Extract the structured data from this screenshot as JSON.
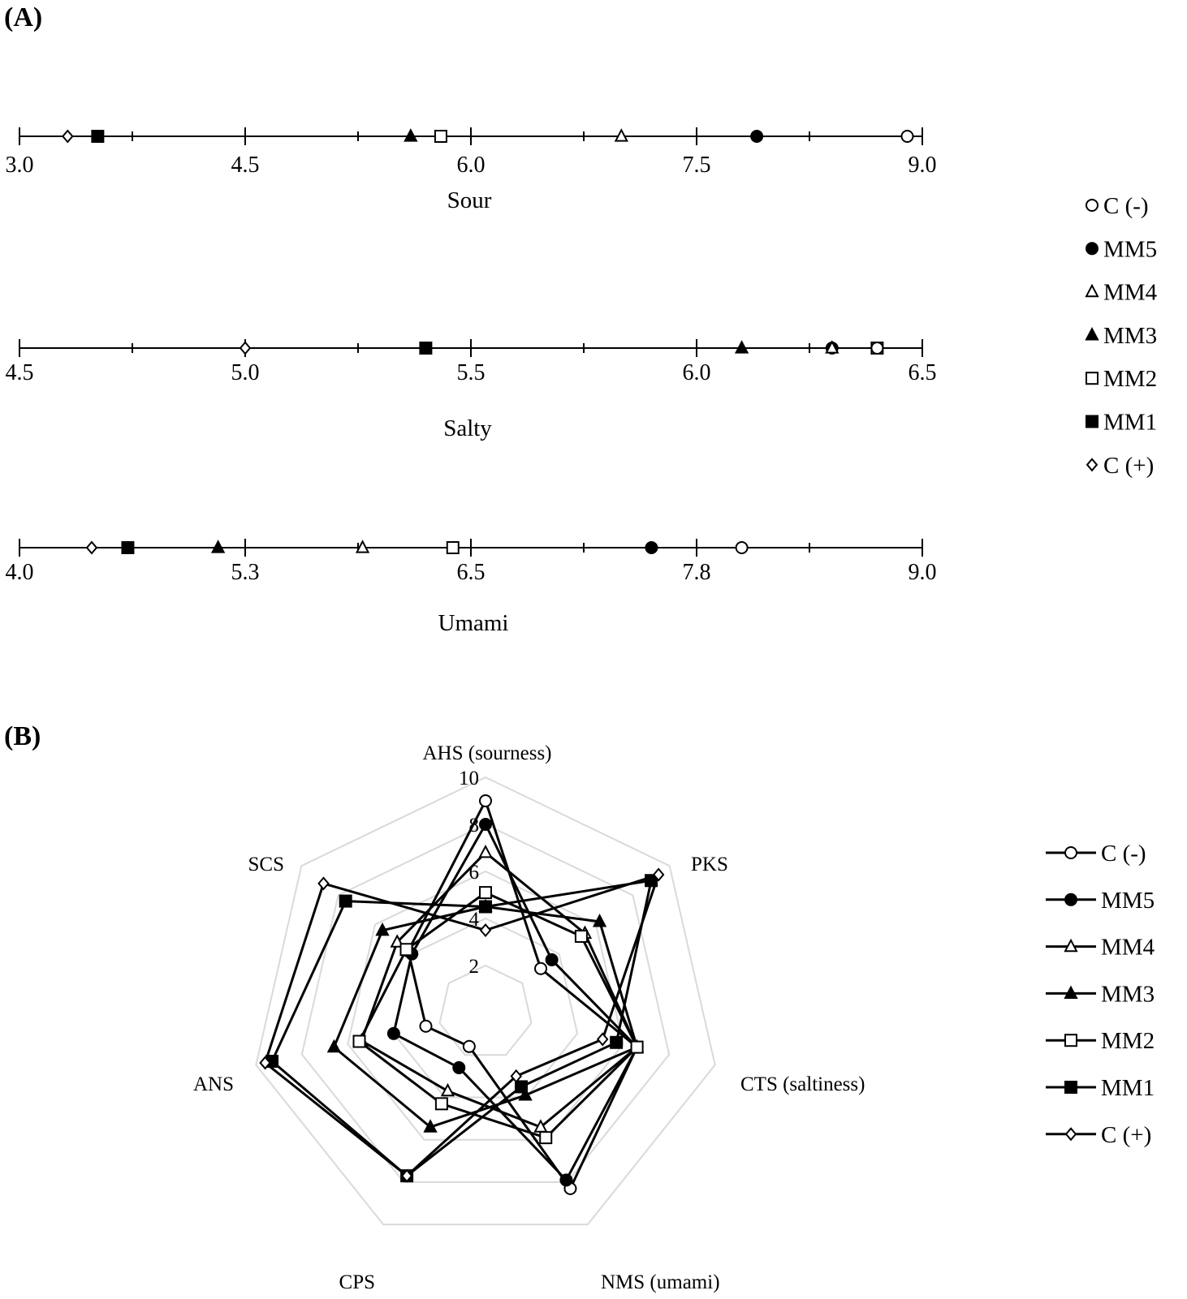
{
  "panels": {
    "a_label": "(A)",
    "b_label": "(B)"
  },
  "legend": {
    "items": [
      {
        "label": "C (-)",
        "marker": "circle-open"
      },
      {
        "label": "MM5",
        "marker": "circle-filled"
      },
      {
        "label": "MM4",
        "marker": "triangle-open"
      },
      {
        "label": "MM3",
        "marker": "triangle-filled"
      },
      {
        "label": "MM2",
        "marker": "square-open"
      },
      {
        "label": "MM1",
        "marker": "square-filled"
      },
      {
        "label": "C (+)",
        "marker": "diamond-open"
      }
    ]
  },
  "colors": {
    "ink": "#000000",
    "grid": "#d9d9d9"
  },
  "chart_data": [
    {
      "type": "scatter",
      "name": "Sour",
      "xlabel": "Sour",
      "xlim": [
        3.0,
        9.0
      ],
      "ticks": [
        "3.0",
        "4.5",
        "6.0",
        "7.5",
        "9.0"
      ],
      "tick_values": [
        3.0,
        4.5,
        6.0,
        7.5,
        9.0
      ],
      "minor_ticks": [
        3.75,
        5.25,
        6.75,
        8.25
      ],
      "points": [
        {
          "series": "C (+)",
          "value": 3.32
        },
        {
          "series": "MM1",
          "value": 3.52
        },
        {
          "series": "MM3",
          "value": 5.6
        },
        {
          "series": "MM2",
          "value": 5.8
        },
        {
          "series": "MM4",
          "value": 7.0
        },
        {
          "series": "MM5",
          "value": 7.9
        },
        {
          "series": "C (-)",
          "value": 8.9
        }
      ]
    },
    {
      "type": "scatter",
      "name": "Salty",
      "xlabel": "Salty",
      "xlim": [
        4.5,
        6.5
      ],
      "ticks": [
        "4.5",
        "5.0",
        "5.5",
        "6.0",
        "6.5"
      ],
      "tick_values": [
        4.5,
        5.0,
        5.5,
        6.0,
        6.5
      ],
      "minor_ticks": [
        4.75,
        5.25,
        5.75,
        6.25
      ],
      "points": [
        {
          "series": "C (+)",
          "value": 5.0
        },
        {
          "series": "MM1",
          "value": 5.4
        },
        {
          "series": "MM3",
          "value": 6.1
        },
        {
          "series": "MM5",
          "value": 6.3
        },
        {
          "series": "MM4",
          "value": 6.3
        },
        {
          "series": "MM2",
          "value": 6.4
        },
        {
          "series": "C (-)",
          "value": 6.4
        }
      ]
    },
    {
      "type": "scatter",
      "name": "Umami",
      "xlabel": "Umami",
      "xlim": [
        4.0,
        9.0
      ],
      "ticks": [
        "4.0",
        "5.3",
        "6.5",
        "7.8",
        "9.0"
      ],
      "tick_values": [
        4.0,
        5.25,
        6.5,
        7.75,
        9.0
      ],
      "minor_ticks": [
        4.625,
        5.875,
        7.125,
        8.375
      ],
      "points": [
        {
          "series": "C (+)",
          "value": 4.4
        },
        {
          "series": "MM1",
          "value": 4.6
        },
        {
          "series": "MM3",
          "value": 5.1
        },
        {
          "series": "MM4",
          "value": 5.9
        },
        {
          "series": "MM2",
          "value": 6.4
        },
        {
          "series": "MM5",
          "value": 7.5
        },
        {
          "series": "C (-)",
          "value": 8.0
        }
      ]
    },
    {
      "type": "radar",
      "axes": [
        "AHS (sourness)",
        "PKS",
        "CTS (saltiness)",
        "NMS (umami)",
        "CPS",
        "ANS",
        "SCS"
      ],
      "rlim": [
        0,
        10
      ],
      "ticks": [
        "2",
        "4",
        "6",
        "8",
        "10"
      ],
      "tick_values": [
        2,
        4,
        6,
        8,
        10
      ],
      "series": [
        {
          "name": "C (-)",
          "values": [
            9.0,
            3.0,
            6.6,
            8.3,
            1.6,
            2.6,
            4.2
          ]
        },
        {
          "name": "MM5",
          "values": [
            8.0,
            3.6,
            6.6,
            7.9,
            2.6,
            4.0,
            4.0
          ]
        },
        {
          "name": "MM4",
          "values": [
            6.8,
            5.4,
            6.6,
            5.4,
            3.7,
            5.4,
            4.8
          ]
        },
        {
          "name": "MM3",
          "values": [
            4.5,
            6.2,
            6.6,
            3.9,
            5.4,
            6.6,
            5.6
          ]
        },
        {
          "name": "MM2",
          "values": [
            5.1,
            5.2,
            6.6,
            5.9,
            4.3,
            5.5,
            4.3
          ]
        },
        {
          "name": "MM1",
          "values": [
            4.5,
            9.0,
            5.7,
            3.5,
            7.7,
            9.3,
            7.6
          ]
        },
        {
          "name": "C (+)",
          "values": [
            3.5,
            9.4,
            5.1,
            3.0,
            7.7,
            9.6,
            8.8
          ]
        }
      ]
    }
  ]
}
